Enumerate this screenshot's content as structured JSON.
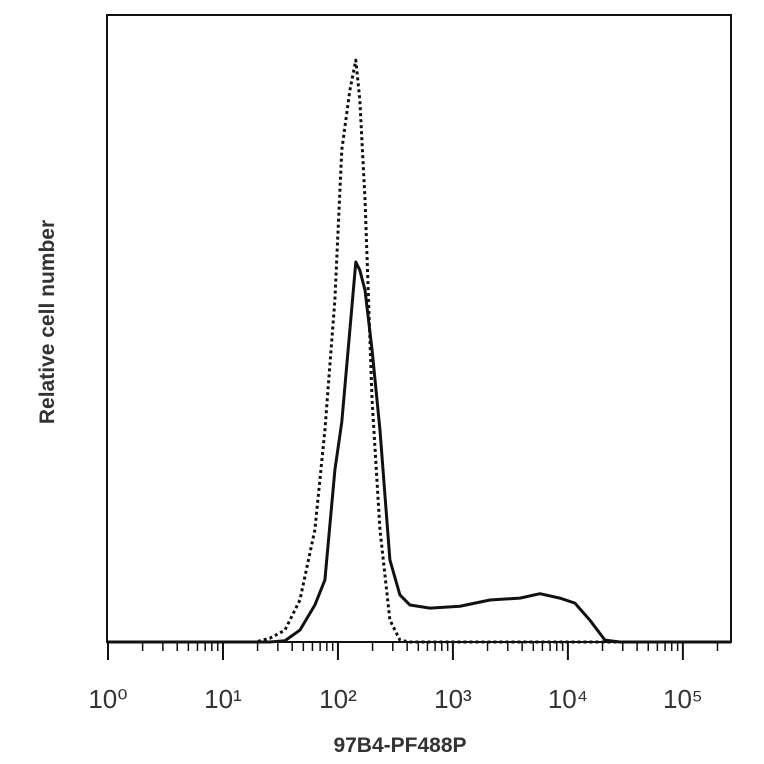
{
  "chart_data": {
    "type": "line",
    "x_label": "97B4-PF488P",
    "y_label": "Relative cell number",
    "xscale": "log",
    "xlim": [
      1,
      262144
    ],
    "ylim": [
      0,
      100
    ],
    "xticks": [
      {
        "value": 1,
        "label": "10⁰"
      },
      {
        "value": 10,
        "label": "10¹"
      },
      {
        "value": 100,
        "label": "10²"
      },
      {
        "value": 1000,
        "label": "10³"
      },
      {
        "value": 10000,
        "label": "10⁴"
      },
      {
        "value": 100000,
        "label": "10⁵"
      }
    ],
    "xminor": [
      2,
      3,
      4,
      5,
      6,
      7,
      8,
      9,
      20,
      30,
      40,
      50,
      60,
      70,
      80,
      90,
      200,
      300,
      400,
      500,
      600,
      700,
      800,
      900,
      2000,
      3000,
      4000,
      5000,
      6000,
      7000,
      8000,
      9000,
      20000,
      30000,
      40000,
      50000,
      60000,
      70000,
      80000,
      90000,
      200000
    ],
    "x": [
      1,
      6.3,
      19,
      25.6,
      34.6,
      46.7,
      63,
      77,
      94,
      108,
      127,
      143,
      155,
      172,
      198,
      232,
      283,
      346,
      423,
      631,
      1150,
      2100,
      3830,
      5710,
      8510,
      11500,
      15500,
      21000,
      28300,
      262144
    ],
    "series": [
      {
        "color": "#111111",
        "style": "dotted",
        "values": [
          0,
          0,
          0,
          0.6,
          1.9,
          6.7,
          17.9,
          33.8,
          54.5,
          78.5,
          88.0,
          92.8,
          86.4,
          70.5,
          38.6,
          17.9,
          3.5,
          0.3,
          0,
          0,
          0,
          0,
          0,
          0,
          0,
          0,
          0,
          0,
          0,
          0
        ]
      },
      {
        "color": "#111111",
        "style": "solid",
        "values": [
          0,
          0,
          0,
          0,
          0.2,
          1.9,
          5.9,
          9.9,
          27.4,
          35.1,
          49.8,
          60.6,
          59.3,
          56.1,
          46.6,
          33.8,
          13.1,
          7.5,
          5.9,
          5.4,
          5.7,
          6.7,
          7.0,
          7.7,
          7.0,
          6.2,
          3.5,
          0.3,
          0,
          0
        ]
      }
    ]
  }
}
